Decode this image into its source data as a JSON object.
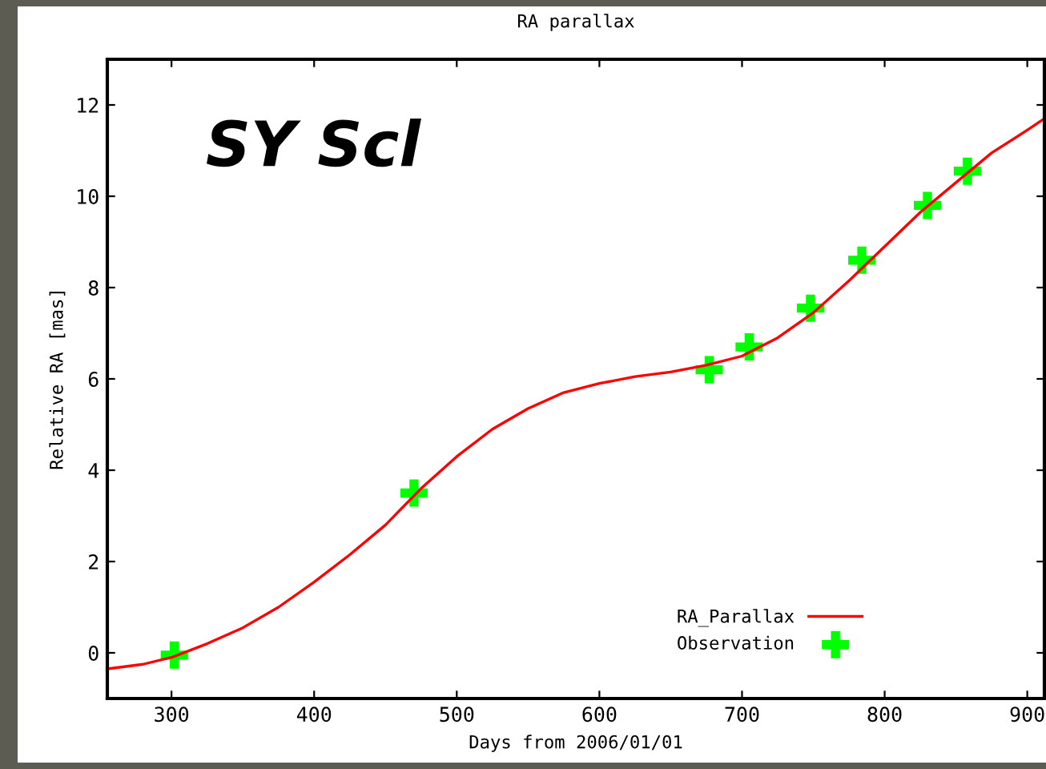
{
  "chart_data": {
    "type": "line",
    "title": "RA parallax",
    "xlabel": "Days from 2006/01/01",
    "ylabel": "Relative RA [mas]",
    "annotations": [
      "SY Scl"
    ],
    "series": [
      {
        "name": "RA_Parallax",
        "color": "#ff0000",
        "marker": "none",
        "x": [
          255,
          280,
          300,
          325,
          350,
          375,
          400,
          425,
          450,
          475,
          500,
          525,
          550,
          575,
          600,
          625,
          650,
          675,
          700,
          725,
          750,
          775,
          800,
          825,
          850,
          875,
          900,
          912
        ],
        "values": [
          -0.35,
          -0.25,
          -0.1,
          0.2,
          0.55,
          1.0,
          1.55,
          2.15,
          2.8,
          3.6,
          4.3,
          4.9,
          5.35,
          5.7,
          5.9,
          6.05,
          6.15,
          6.3,
          6.5,
          6.9,
          7.45,
          8.15,
          8.9,
          9.65,
          10.3,
          10.95,
          11.45,
          11.7
        ]
      },
      {
        "name": "Observation",
        "type": "scatter",
        "color": "#00ff00",
        "marker": "cross",
        "x": [
          302,
          470,
          677,
          705,
          748,
          784,
          830,
          858
        ],
        "values": [
          -0.05,
          3.5,
          6.2,
          6.7,
          7.55,
          8.6,
          9.8,
          10.55
        ]
      }
    ],
    "xlim": [
      255,
      912
    ],
    "xticks": [
      300,
      400,
      500,
      600,
      700,
      800,
      900
    ],
    "ylim": [
      -1,
      13
    ],
    "yticks": [
      0,
      2,
      4,
      6,
      8,
      10,
      12
    ],
    "grid": false,
    "legend": "bottom right"
  }
}
